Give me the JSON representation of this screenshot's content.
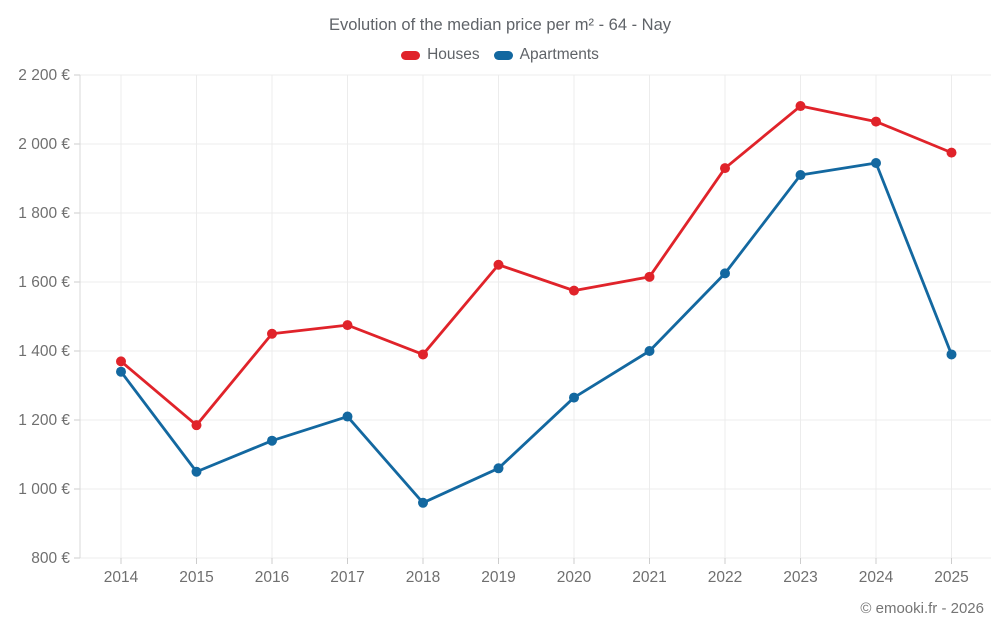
{
  "header": {
    "title": "Evolution of the median price per m² - 64 - Nay"
  },
  "footer": {
    "credit": "© emooki.fr - 2026"
  },
  "chart_data": {
    "type": "line",
    "title": "Evolution of the median price per m² - 64 - Nay",
    "categories": [
      "2014",
      "2015",
      "2016",
      "2017",
      "2018",
      "2019",
      "2020",
      "2021",
      "2022",
      "2023",
      "2024",
      "2025"
    ],
    "series": [
      {
        "name": "Houses",
        "color": "#e0232a",
        "values": [
          1370,
          1185,
          1450,
          1475,
          1390,
          1650,
          1575,
          1615,
          1930,
          2110,
          2065,
          1975
        ]
      },
      {
        "name": "Apartments",
        "color": "#1368a0",
        "values": [
          1340,
          1050,
          1140,
          1210,
          960,
          1060,
          1265,
          1400,
          1625,
          1910,
          1945,
          1390
        ]
      }
    ],
    "xlabel": "",
    "ylabel": "",
    "ylim": [
      800,
      2200
    ],
    "y_ticks": [
      800,
      1000,
      1200,
      1400,
      1600,
      1800,
      2000,
      2200
    ],
    "y_tick_suffix": " €",
    "grid": true,
    "legend_position": "top",
    "colors": {
      "grid_line": "#ececec",
      "axis_line": "#d9d9d9",
      "tick_mark": "#cccccc",
      "axis_label": "#6f6f6f",
      "title_text": "#5f6368"
    }
  }
}
